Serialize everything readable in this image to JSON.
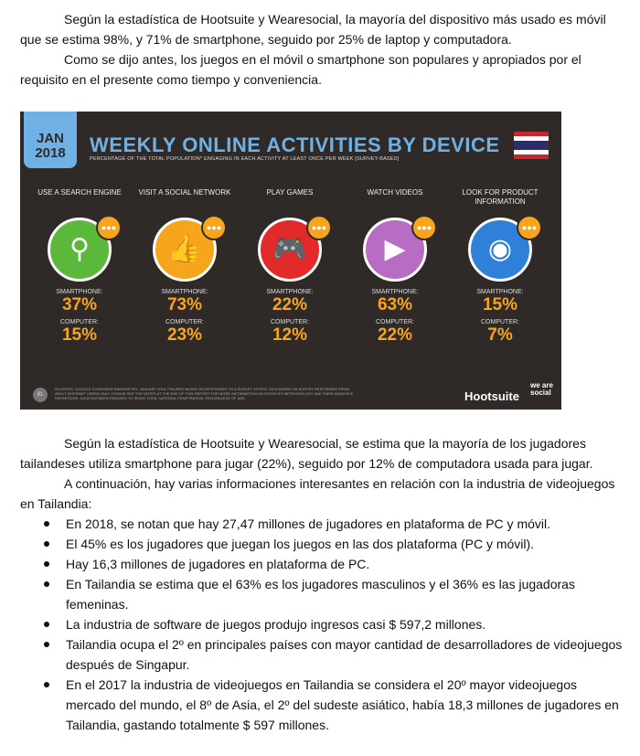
{
  "top_paragraphs": [
    "Según la estadística de Hootsuite y Wearesocial, la mayoría del dispositivo más usado es móvil que se estima 98%, y 71% de smartphone, seguido por 25% de laptop y computadora.",
    "Como se dijo antes, los juegos en el móvil o smartphone son populares y apropiados por el requisito en el presente como tiempo y conveniencia."
  ],
  "infographic": {
    "date_month": "JAN",
    "date_year": "2018",
    "title": "WEEKLY ONLINE ACTIVITIES BY DEVICE",
    "subtitle": "PERCENTAGE OF THE TOTAL POPULATION* ENGAGING IN EACH ACTIVITY AT LEAST ONCE PER WEEK [SURVEY-BASED]",
    "smartphone_label": "SMARTPHONE:",
    "computer_label": "COMPUTER:",
    "activities": [
      {
        "label": "USE A SEARCH ENGINE",
        "smartphone": "37%",
        "computer": "15%",
        "color": "#5cb83a",
        "icon": "magnifier-icon"
      },
      {
        "label": "VISIT A SOCIAL NETWORK",
        "smartphone": "73%",
        "computer": "23%",
        "color": "#f7a51c",
        "icon": "thumbs-icon"
      },
      {
        "label": "PLAY GAMES",
        "smartphone": "22%",
        "computer": "12%",
        "color": "#e32a2a",
        "icon": "gamepad-icon"
      },
      {
        "label": "WATCH VIDEOS",
        "smartphone": "63%",
        "computer": "22%",
        "color": "#b86cc4",
        "icon": "play-icon"
      },
      {
        "label": "LOOK FOR PRODUCT INFORMATION",
        "smartphone": "15%",
        "computer": "7%",
        "color": "#2f80d8",
        "icon": "bottle-icon"
      }
    ],
    "page_number": "81",
    "source": "SOURCES: GOOGLE CONSUMER BAROMETER, JANUARY 2018. FIGURES BASED ON RESPONSES TO A SURVEY. NOTES: DATA BASED ON SURVEY RESPONSES FROM ADULT INTERNET USERS ONLY. PLEASE SEE THE NOTES AT THE END OF THIS REPORT FOR MORE INFORMATION ON GOOGLE'S METHODOLOGY AND THEIR AUDIENCE DEFINITIONS. DATA HAS BEEN REBASED TO SHOW TOTAL NATIONAL PENETRATION, REGARDLESS OF AGE.",
    "brand1": "Hootsuite",
    "brand2": "we are social"
  },
  "bottom_paragraphs": [
    "Según la estadística de Hootsuite y Wearesocial, se estima que la mayoría de los jugadores tailandeses utiliza smartphone para jugar (22%), seguido por 12% de computadora usada para jugar.",
    "A continuación, hay varias informaciones interesantes en relación con la industria de videojuegos en Tailandia:"
  ],
  "bullets": [
    "En 2018, se notan que hay 27,47 millones de jugadores en plataforma de PC y móvil.",
    "El 45% es los jugadores que juegan los juegos en las dos plataforma (PC y móvil).",
    "Hay 16,3 millones de jugadores en plataforma de PC.",
    "En Tailandia se estima que el 63% es los jugadores masculinos y el 36% es las jugadoras femeninas.",
    "La industria de software de juegos produjo ingresos casi $ 597,2 millones.",
    "Tailandia ocupa el 2º en principales países con mayor cantidad de desarrolladores de videojuegos después de Singapur.",
    "En el 2017 la industria de videojuegos en Tailandia se considera el 20º mayor videojuegos mercado del mundo, el 8º de Asia, el 2º del sudeste asiático, había 18,3 millones de jugadores en Tailandia, gastando totalmente $ 597 millones."
  ]
}
